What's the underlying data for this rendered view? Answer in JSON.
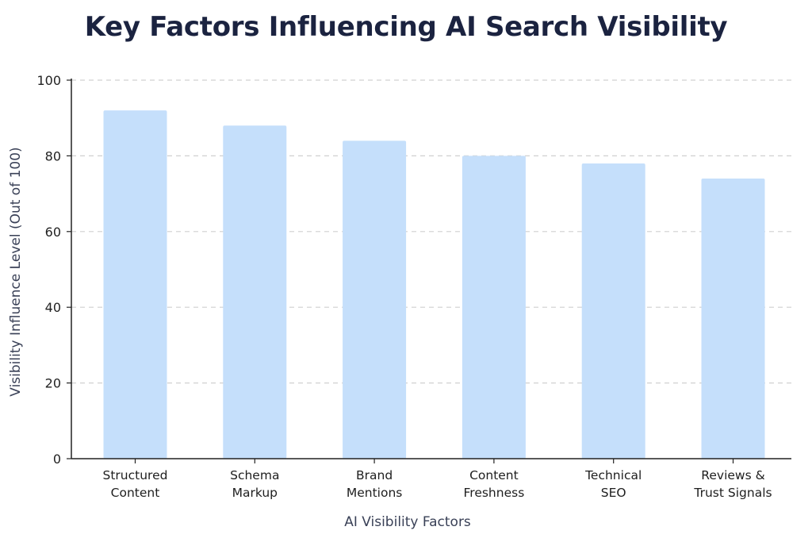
{
  "chart_data": {
    "type": "bar",
    "title": "Key Factors Influencing AI Search Visibility",
    "xlabel": "AI Visibility Factors",
    "ylabel": "Visibility Influence Level (Out of 100)",
    "categories": [
      [
        "Structured",
        "Content"
      ],
      [
        "Schema",
        "Markup"
      ],
      [
        "Brand",
        "Mentions"
      ],
      [
        "Content",
        "Freshness"
      ],
      [
        "Technical",
        "SEO"
      ],
      [
        "Reviews &",
        "Trust Signals"
      ]
    ],
    "values": [
      92,
      88,
      84,
      80,
      78,
      74
    ],
    "ylim": [
      0,
      100
    ],
    "yticks": [
      0,
      20,
      40,
      60,
      80,
      100
    ],
    "grid": true,
    "legend": "none",
    "colors": {
      "bar": "#c5dffb",
      "grid": "#d0d0d0",
      "axis": "#222222",
      "title": "#1b2340"
    }
  }
}
